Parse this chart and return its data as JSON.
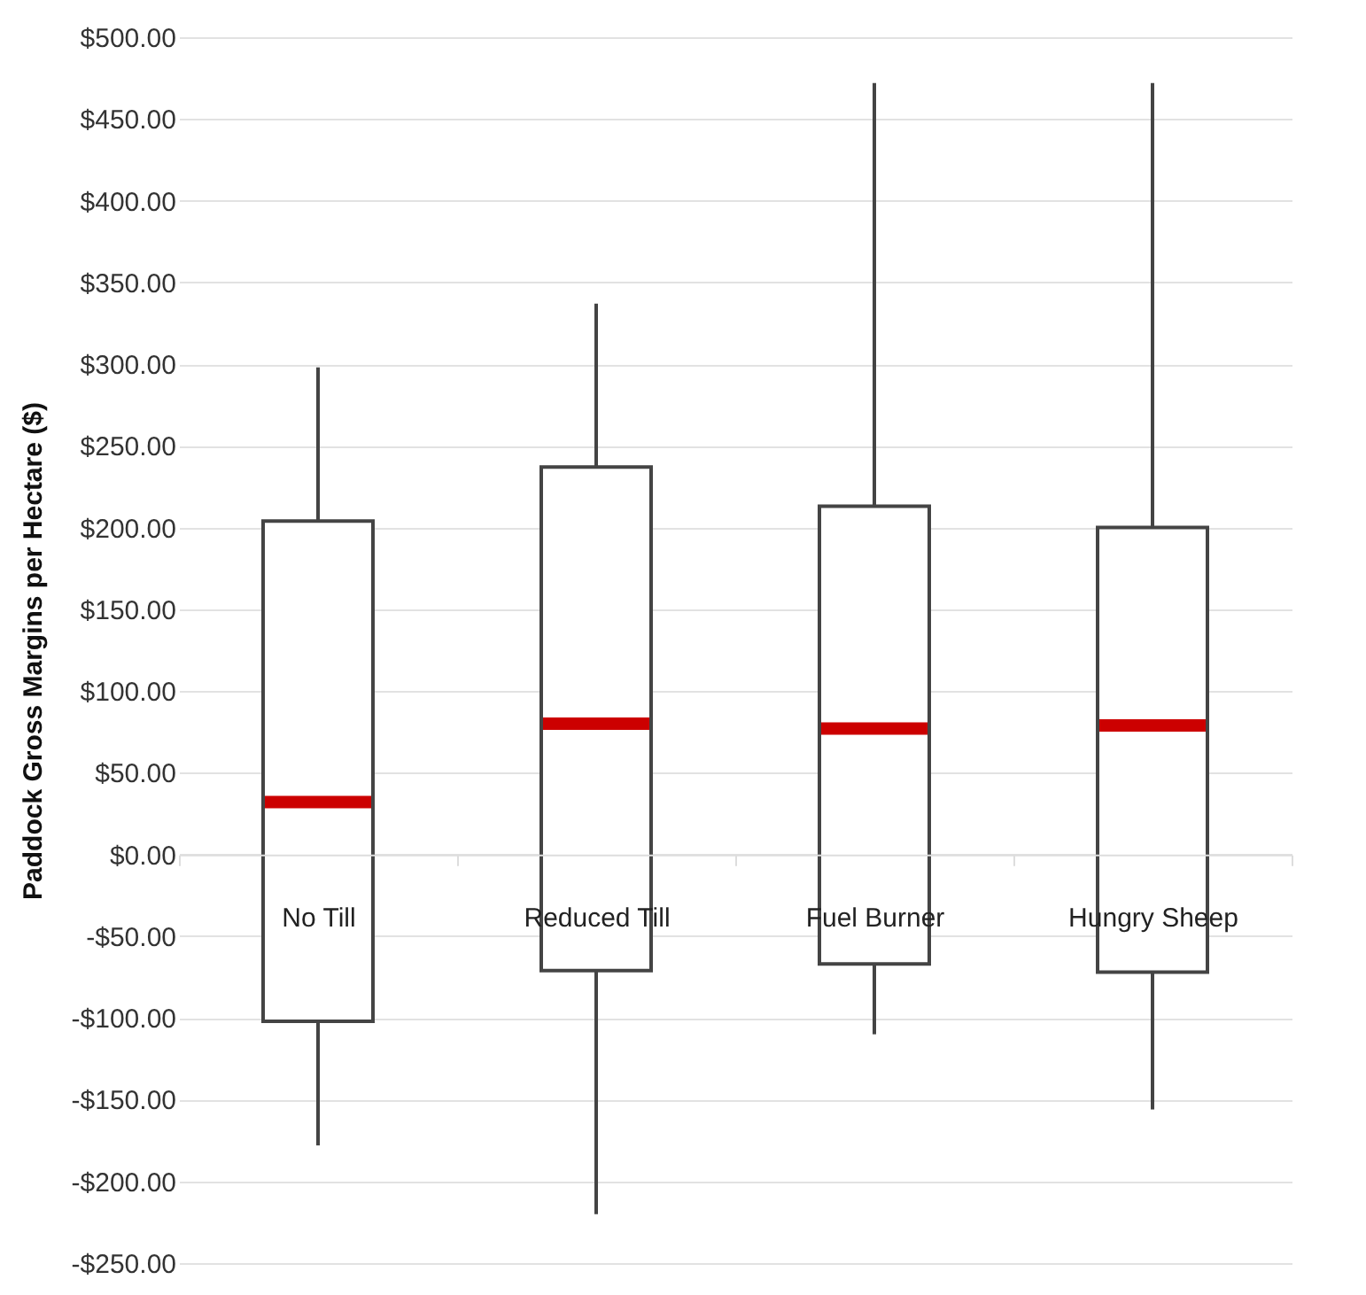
{
  "chart_data": {
    "type": "box",
    "ylabel": "Paddock Gross Margins per Hectare ($)",
    "categories": [
      "No Till",
      "Reduced Till",
      "Fuel Burner",
      "Hungry Sheep"
    ],
    "boxes": [
      {
        "low": -178,
        "q1": -102,
        "median": 32,
        "q3": 204,
        "high": 298
      },
      {
        "low": -220,
        "q1": -71,
        "median": 80,
        "q3": 237,
        "high": 337
      },
      {
        "low": -110,
        "q1": -67,
        "median": 77,
        "q3": 213,
        "high": 472
      },
      {
        "low": -156,
        "q1": -72,
        "median": 79,
        "q3": 200,
        "high": 472
      }
    ],
    "ylim": [
      -250,
      500
    ],
    "yticks": [
      {
        "value": -250,
        "label": "-$250.00"
      },
      {
        "value": -200,
        "label": "-$200.00"
      },
      {
        "value": -150,
        "label": "-$150.00"
      },
      {
        "value": -100,
        "label": "-$100.00"
      },
      {
        "value": -50,
        "label": "-$50.00"
      },
      {
        "value": 0,
        "label": "$0.00"
      },
      {
        "value": 50,
        "label": "$50.00"
      },
      {
        "value": 100,
        "label": "$100.00"
      },
      {
        "value": 150,
        "label": "$150.00"
      },
      {
        "value": 200,
        "label": "$200.00"
      },
      {
        "value": 250,
        "label": "$250.00"
      },
      {
        "value": 300,
        "label": "$300.00"
      },
      {
        "value": 350,
        "label": "$350.00"
      },
      {
        "value": 400,
        "label": "$400.00"
      },
      {
        "value": 450,
        "label": "$450.00"
      },
      {
        "value": 500,
        "label": "$500.00"
      }
    ],
    "grid": true
  }
}
